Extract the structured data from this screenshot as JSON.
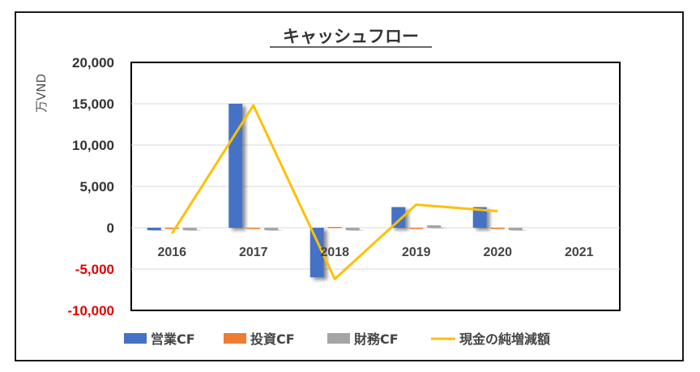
{
  "chart_data": {
    "type": "bar",
    "title": "キャッシュフロー",
    "ylabel": "万VND",
    "xlabel": "",
    "categories": [
      "2016",
      "2017",
      "2018",
      "2019",
      "2020",
      "2021"
    ],
    "ylim": [
      -10000,
      20000
    ],
    "yticks": [
      "20,000",
      "15,000",
      "10,000",
      "5,000",
      "0",
      "-5,000",
      "-10,000"
    ],
    "ytick_values": [
      20000,
      15000,
      10000,
      5000,
      0,
      -5000,
      -10000
    ],
    "negative_tick_color": "#e00000",
    "grid": true,
    "legend_position": "bottom",
    "series": [
      {
        "name": "営業CF",
        "kind": "bar",
        "color": "#4472c4",
        "values": [
          -300,
          15000,
          -6000,
          2500,
          2500,
          null
        ]
      },
      {
        "name": "投資CF",
        "kind": "bar",
        "color": "#ed7d31",
        "values": [
          -100,
          -100,
          100,
          -100,
          -150,
          null
        ]
      },
      {
        "name": "財務CF",
        "kind": "bar",
        "color": "#a5a5a5",
        "values": [
          -300,
          -300,
          -300,
          300,
          -300,
          null
        ]
      },
      {
        "name": "現金の純増減額",
        "kind": "line",
        "color": "#ffc000",
        "values": [
          -700,
          14800,
          -6200,
          2800,
          2000,
          null
        ]
      }
    ]
  }
}
